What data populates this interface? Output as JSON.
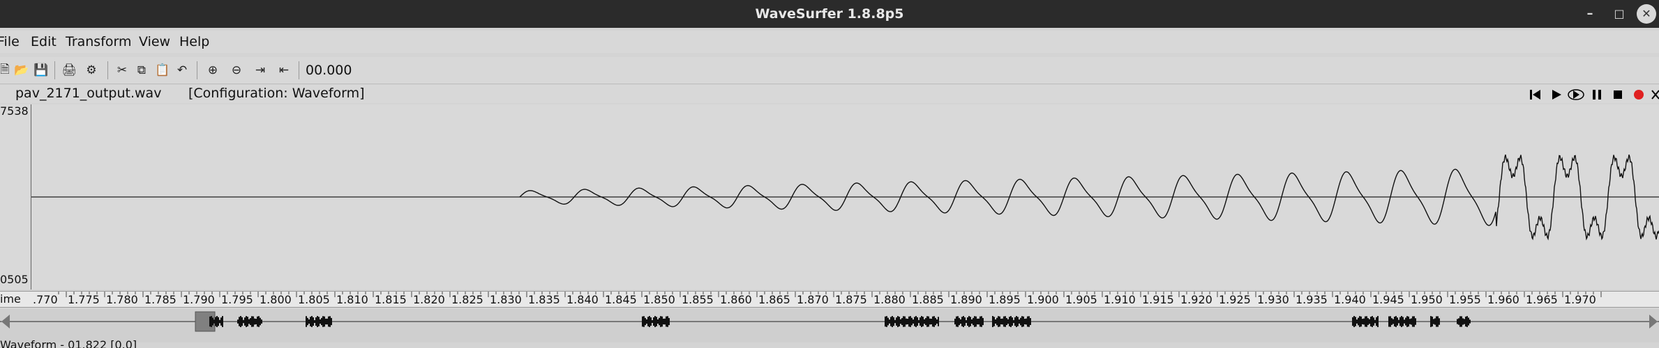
{
  "window": {
    "title": "WaveSurfer 1.8.8p5"
  },
  "menu": [
    "File",
    "Edit",
    "Transform",
    "View",
    "Help"
  ],
  "toolbar": {
    "time_value": "00.000",
    "icons": [
      "new-icon",
      "open-icon",
      "save-icon",
      "print-icon",
      "properties-icon",
      "cut-icon",
      "copy-icon",
      "paste-icon",
      "undo-icon",
      "zoom-in-icon",
      "zoom-out-icon",
      "zoom-all-icon",
      "zoom-selection-icon"
    ]
  },
  "info": {
    "filename": "pav_2171_output.wav",
    "configuration": "[Configuration: Waveform]"
  },
  "playback": [
    "skip-to-start-icon",
    "play-icon",
    "play-loop-icon",
    "pause-icon",
    "stop-icon",
    "record-icon",
    "close-pane-icon"
  ],
  "waveform": {
    "y_max_label": "7538",
    "y_min_label": "0505"
  },
  "time_axis": {
    "label": "ime",
    "start_fraction_label": ".770",
    "ticks": [
      "1.775",
      "1.780",
      "1.785",
      "1.790",
      "1.795",
      "1.800",
      "1.805",
      "1.810",
      "1.815",
      "1.820",
      "1.825",
      "1.830",
      "1.835",
      "1.840",
      "1.845",
      "1.850",
      "1.855",
      "1.860",
      "1.865",
      "1.870",
      "1.875",
      "1.880",
      "1.885",
      "1.890",
      "1.895",
      "1.900",
      "1.905",
      "1.910",
      "1.915",
      "1.920",
      "1.925",
      "1.930",
      "1.935",
      "1.940",
      "1.945",
      "1.950",
      "1.955",
      "1.960",
      "1.965",
      "1.970"
    ]
  },
  "status": {
    "text": "Waveform - 01.822 [0.0]"
  },
  "colors": {
    "titlebar": "#2b2b2b",
    "record": "#e02020",
    "waveform": "#111111"
  }
}
